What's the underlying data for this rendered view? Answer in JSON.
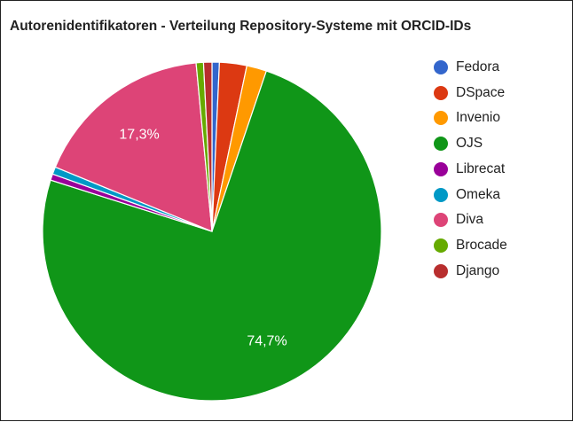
{
  "chart_data": {
    "type": "pie",
    "title": "Autorenidentifikatoren - Verteilung Repository-Systeme mit ORCID-IDs",
    "legend_position": "right",
    "slices": [
      {
        "label": "Fedora",
        "value": 0.7,
        "color": "#3366cc"
      },
      {
        "label": "DSpace",
        "value": 2.6,
        "color": "#dc3912"
      },
      {
        "label": "Invenio",
        "value": 1.9,
        "color": "#ff9900"
      },
      {
        "label": "OJS",
        "value": 74.7,
        "color": "#109618",
        "data_label": "74,7%"
      },
      {
        "label": "Librecat",
        "value": 0.6,
        "color": "#990099"
      },
      {
        "label": "Omeka",
        "value": 0.7,
        "color": "#0099c6"
      },
      {
        "label": "Diva",
        "value": 17.3,
        "color": "#dd4477",
        "data_label": "17,3%"
      },
      {
        "label": "Brocade",
        "value": 0.7,
        "color": "#66aa00"
      },
      {
        "label": "Django",
        "value": 0.8,
        "color": "#b82e2e"
      }
    ]
  }
}
